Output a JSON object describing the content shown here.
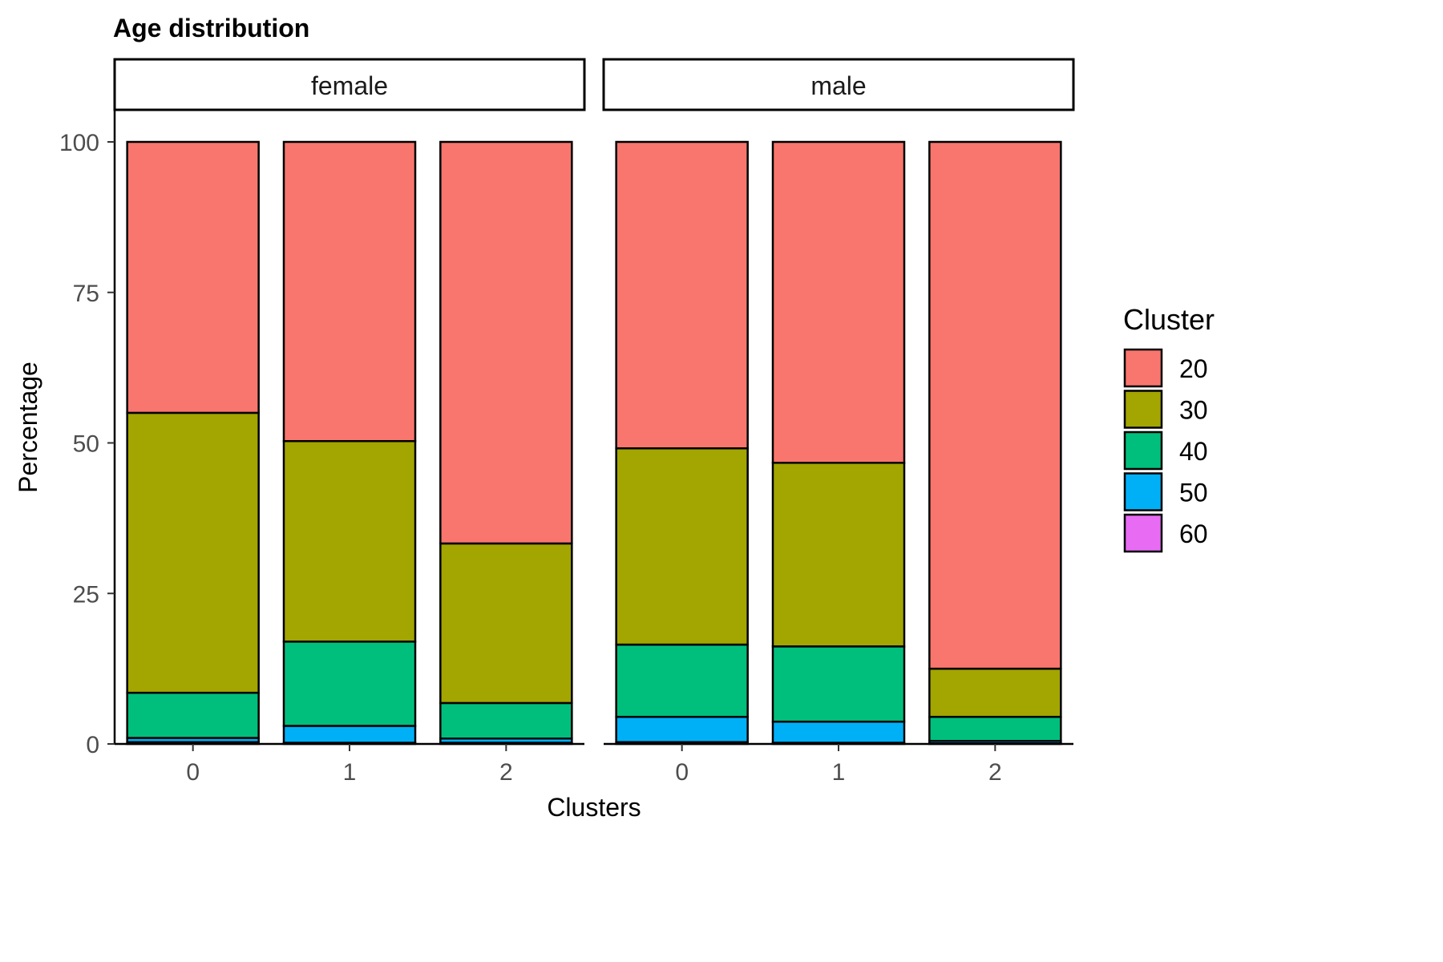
{
  "chart_data": {
    "type": "bar",
    "stacked": true,
    "title": "Age distribution",
    "xlabel": "Clusters",
    "ylabel": "Percentage",
    "ylim": [
      0,
      100
    ],
    "yticks": [
      0,
      25,
      50,
      75,
      100
    ],
    "categories": [
      "0",
      "1",
      "2"
    ],
    "legend": {
      "title": "Cluster",
      "position": "right",
      "entries": [
        "20",
        "30",
        "40",
        "50",
        "60"
      ]
    },
    "colors": {
      "20": "#F8766D",
      "30": "#A3A500",
      "40": "#00BF7D",
      "50": "#00B0F6",
      "60": "#E76BF3"
    },
    "grid": false,
    "facets": [
      {
        "label": "female",
        "series": [
          {
            "name": "20",
            "values": [
              45.0,
              49.7,
              66.7
            ]
          },
          {
            "name": "30",
            "values": [
              46.5,
              33.3,
              26.5
            ]
          },
          {
            "name": "40",
            "values": [
              7.5,
              14.0,
              5.9
            ]
          },
          {
            "name": "50",
            "values": [
              0.7,
              2.8,
              0.7
            ]
          },
          {
            "name": "60",
            "values": [
              0.3,
              0.2,
              0.2
            ]
          }
        ]
      },
      {
        "label": "male",
        "series": [
          {
            "name": "20",
            "values": [
              50.9,
              53.3,
              87.5
            ]
          },
          {
            "name": "30",
            "values": [
              32.6,
              30.5,
              8.0
            ]
          },
          {
            "name": "40",
            "values": [
              12.0,
              12.5,
              4.0
            ]
          },
          {
            "name": "50",
            "values": [
              4.2,
              3.5,
              0.4
            ]
          },
          {
            "name": "60",
            "values": [
              0.3,
              0.2,
              0.1
            ]
          }
        ]
      }
    ]
  }
}
